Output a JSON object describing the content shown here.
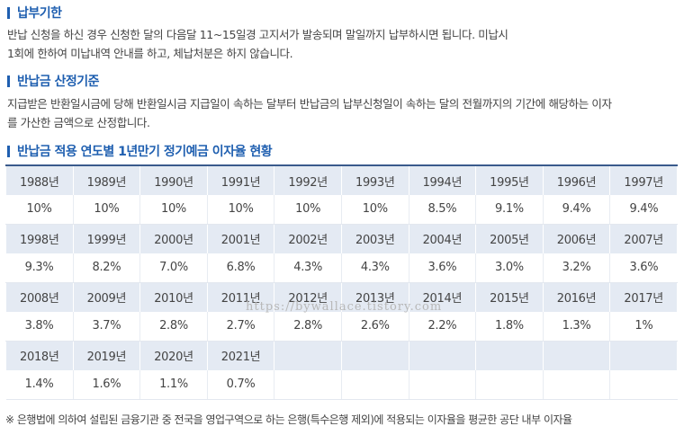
{
  "sections": [
    {
      "title": "납부기한",
      "paragraph": [
        "반납 신청을 하신 경우 신청한 달의 다음달 11~15일경 고지서가 발송되며 말일까지 납부하시면 됩니다. 미납시",
        "1회에 한하여 미납내역 안내를 하고, 체납처분은 하지 않습니다."
      ]
    },
    {
      "title": "반납금 산정기준",
      "paragraph": [
        "지급받은 반환일시금에 당해 반환일시금 지급일이 속하는 달부터 반납금의 납부신청일이 속하는 달의 전월까지의 기간에 해당하는 이자",
        "를 가산한 금액으로 산정합니다."
      ]
    },
    {
      "title": "반납금 적용 연도별 1년만기 정기예금 이자율 현황"
    }
  ],
  "table": {
    "rows": [
      {
        "years": [
          "1988년",
          "1989년",
          "1990년",
          "1991년",
          "1992년",
          "1993년",
          "1994년",
          "1995년",
          "1996년",
          "1997년"
        ],
        "rates": [
          "10%",
          "10%",
          "10%",
          "10%",
          "10%",
          "10%",
          "8.5%",
          "9.1%",
          "9.4%",
          "9.4%"
        ]
      },
      {
        "years": [
          "1998년",
          "1999년",
          "2000년",
          "2001년",
          "2002년",
          "2003년",
          "2004년",
          "2005년",
          "2006년",
          "2007년"
        ],
        "rates": [
          "9.3%",
          "8.2%",
          "7.0%",
          "6.8%",
          "4.3%",
          "4.3%",
          "3.6%",
          "3.0%",
          "3.2%",
          "3.6%"
        ]
      },
      {
        "years": [
          "2008년",
          "2009년",
          "2010년",
          "2011년",
          "2012년",
          "2013년",
          "2014년",
          "2015년",
          "2016년",
          "2017년"
        ],
        "rates": [
          "3.8%",
          "3.7%",
          "2.8%",
          "2.7%",
          "2.8%",
          "2.6%",
          "2.2%",
          "1.8%",
          "1.3%",
          "1%"
        ]
      },
      {
        "years": [
          "2018년",
          "2019년",
          "2020년",
          "2021년",
          "",
          "",
          "",
          "",
          "",
          ""
        ],
        "rates": [
          "1.4%",
          "1.6%",
          "1.1%",
          "0.7%",
          "",
          "",
          "",
          "",
          "",
          ""
        ]
      }
    ]
  },
  "watermark": "https://bywallace.tistory.com",
  "footnote": "※ 은행법에 의하여 설립된 금융기관 중 전국을 영업구역으로 하는 은행(특수은행 제외)에 적용되는 이자율을 평균한 공단 내부 이자율"
}
